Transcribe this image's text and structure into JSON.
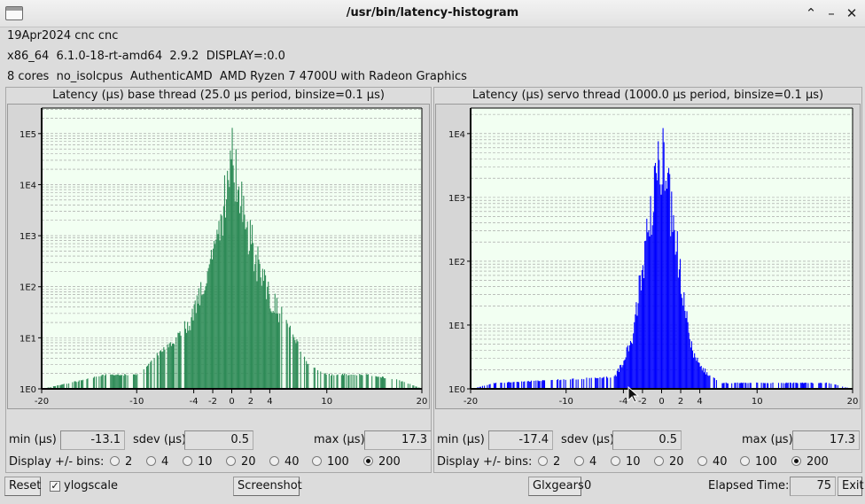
{
  "window": {
    "title": "/usr/bin/latency-histogram"
  },
  "info": {
    "line1": "19Apr2024 cnc cnc",
    "line2": "x86_64  6.1.0-18-rt-amd64  2.9.2  DISPLAY=:0.0",
    "line3": "8 cores  no_isolcpus  AuthenticAMD  AMD Ryzen 7 4700U with Radeon Graphics"
  },
  "base": {
    "title": "Latency (µs) base thread (25.0 µs period, binsize=0.1 µs)",
    "min_label": "min (µs)",
    "min_value": "-13.1",
    "sdev_label": "sdev (µs)",
    "sdev_value": "0.5",
    "max_label": "max (µs)",
    "max_value": "17.3",
    "bar_color": "#2e8b57"
  },
  "servo": {
    "title": "Latency (µs) servo thread (1000.0 µs period, binsize=0.1 µs)",
    "min_label": "min (µs)",
    "min_value": "-17.4",
    "sdev_label": "sdev (µs)",
    "sdev_value": "0.5",
    "max_label": "max (µs)",
    "max_value": "17.3",
    "bar_color": "#0000ff"
  },
  "display_bins": {
    "label": "Display +/- bins:",
    "options": [
      "2",
      "4",
      "10",
      "20",
      "40",
      "100",
      "200"
    ],
    "selected": "200"
  },
  "bottom": {
    "reset": "Reset",
    "ylogscale": "ylogscale",
    "ylogscale_checked": true,
    "screenshot": "Screenshot",
    "glxgears": "Glxgears",
    "glxgears_count": "0",
    "elapsed_label": "Elapsed Time:",
    "elapsed_value": "75",
    "exit": "Exit"
  },
  "chart_data": [
    {
      "type": "bar",
      "title": "Latency (µs) base thread (25.0 µs period, binsize=0.1 µs)",
      "xlabel": "",
      "ylabel": "",
      "xlim": [
        -20,
        20
      ],
      "ylim_log10": [
        0,
        5.5
      ],
      "y_scale": "log",
      "x_ticks": [
        "-20",
        "-10",
        "-4",
        "-2",
        "0",
        "2",
        "4",
        "10",
        "20"
      ],
      "x_tick_values": [
        -20,
        -10,
        -4,
        -2,
        0,
        2,
        4,
        10,
        20
      ],
      "y_ticks": [
        "1E0",
        "1E1",
        "1E2",
        "1E3",
        "1E4",
        "1E5"
      ],
      "envelope_x_us": [
        -20,
        -13.1,
        -10,
        -8,
        -6,
        -4,
        -3,
        -2,
        -1,
        0,
        1,
        2,
        3,
        4,
        6,
        8,
        10,
        14,
        17.3,
        20
      ],
      "envelope_log10_count": [
        0,
        0.3,
        0.3,
        0.7,
        1.0,
        1.7,
        2.4,
        3.2,
        4.0,
        5.4,
        4.2,
        3.4,
        2.6,
        2.1,
        1.3,
        0.5,
        0.3,
        0.3,
        0.2,
        0
      ],
      "grid": true,
      "bar_color": "#2e8b57"
    },
    {
      "type": "bar",
      "title": "Latency (µs) servo thread (1000.0 µs period, binsize=0.1 µs)",
      "xlabel": "",
      "ylabel": "",
      "xlim": [
        -20,
        20
      ],
      "ylim_log10": [
        0,
        4.4
      ],
      "y_scale": "log",
      "x_ticks": [
        "-20",
        "-10",
        "-4",
        "-2",
        "0",
        "2",
        "4",
        "10",
        "20"
      ],
      "x_tick_values": [
        -20,
        -10,
        -4,
        -2,
        0,
        2,
        4,
        10,
        20
      ],
      "y_ticks": [
        "1E0",
        "1E1",
        "1E2",
        "1E3",
        "1E4"
      ],
      "envelope_x_us": [
        -20,
        -17.4,
        -5,
        -4,
        -3,
        -2,
        -1,
        0,
        1,
        2,
        3,
        4,
        6,
        17.3,
        20
      ],
      "envelope_log10_count": [
        0,
        0.1,
        0.2,
        0.5,
        1.0,
        2.3,
        3.3,
        4.3,
        3.2,
        2.0,
        0.8,
        0.4,
        0.1,
        0.1,
        0
      ],
      "grid": true,
      "bar_color": "#0000ff"
    }
  ]
}
